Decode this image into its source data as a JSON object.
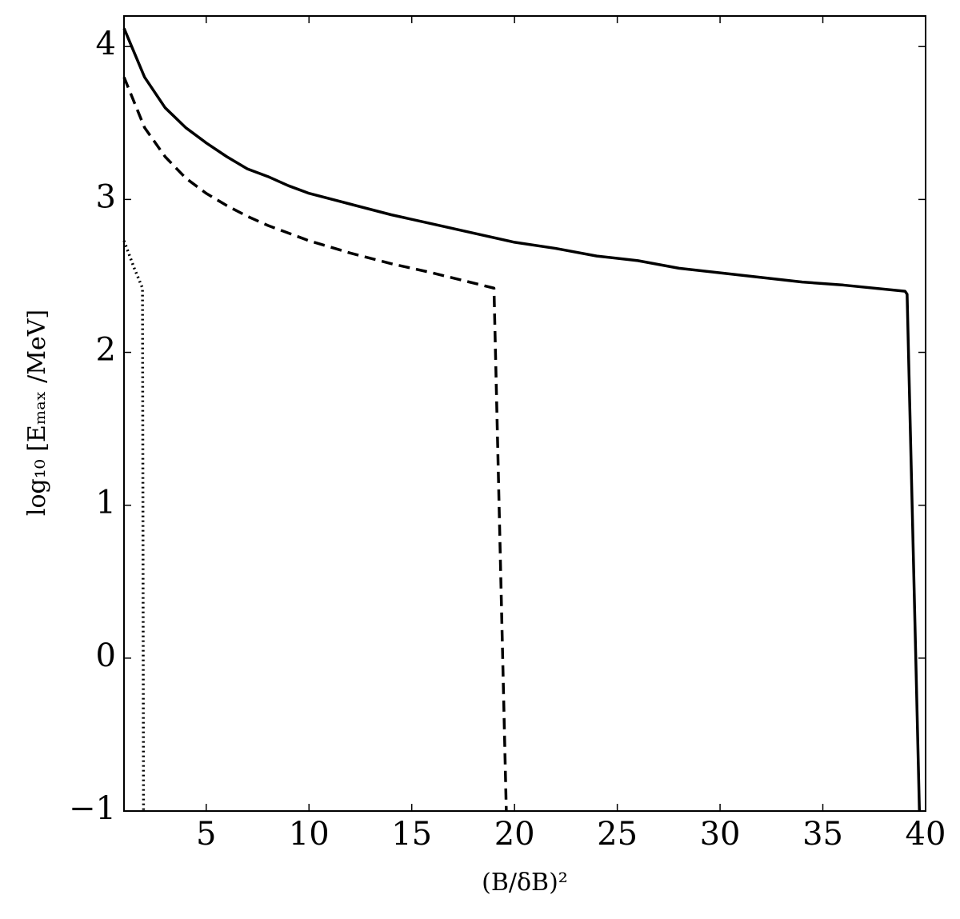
{
  "chart_data": {
    "type": "line",
    "xlabel": "(B/δB)²",
    "ylabel": "log₁₀ [Eₘₐₓ /MeV]",
    "xlim": [
      1,
      40
    ],
    "ylim": [
      -1,
      4.2
    ],
    "xticks": [
      5,
      10,
      15,
      20,
      25,
      30,
      35,
      40
    ],
    "yticks": [
      {
        "value": -1,
        "label": "−1"
      },
      0,
      1,
      2,
      3,
      4
    ],
    "grid": false,
    "series": [
      {
        "linestyle": "solid",
        "color": "#000000",
        "x": [
          1,
          2,
          3,
          4,
          5,
          6,
          7,
          8,
          9,
          10,
          12,
          14,
          16,
          18,
          20,
          22,
          24,
          26,
          28,
          30,
          32,
          34,
          36,
          39,
          39.1,
          39.7
        ],
        "values": [
          4.12,
          3.8,
          3.6,
          3.47,
          3.37,
          3.28,
          3.2,
          3.15,
          3.09,
          3.04,
          2.97,
          2.9,
          2.84,
          2.78,
          2.72,
          2.68,
          2.63,
          2.6,
          2.55,
          2.52,
          2.49,
          2.46,
          2.44,
          2.4,
          2.38,
          -1
        ]
      },
      {
        "linestyle": "dashed",
        "color": "#000000",
        "x": [
          1,
          2,
          3,
          4,
          5,
          6,
          7,
          8,
          10,
          12,
          14,
          16,
          19,
          19.6
        ],
        "values": [
          3.8,
          3.47,
          3.28,
          3.14,
          3.04,
          2.96,
          2.89,
          2.83,
          2.73,
          2.65,
          2.58,
          2.52,
          2.42,
          -1
        ]
      },
      {
        "linestyle": "dotted",
        "color": "#000000",
        "x": [
          1,
          1.5,
          1.9,
          1.95
        ],
        "values": [
          2.73,
          2.55,
          2.42,
          -1
        ]
      }
    ]
  }
}
